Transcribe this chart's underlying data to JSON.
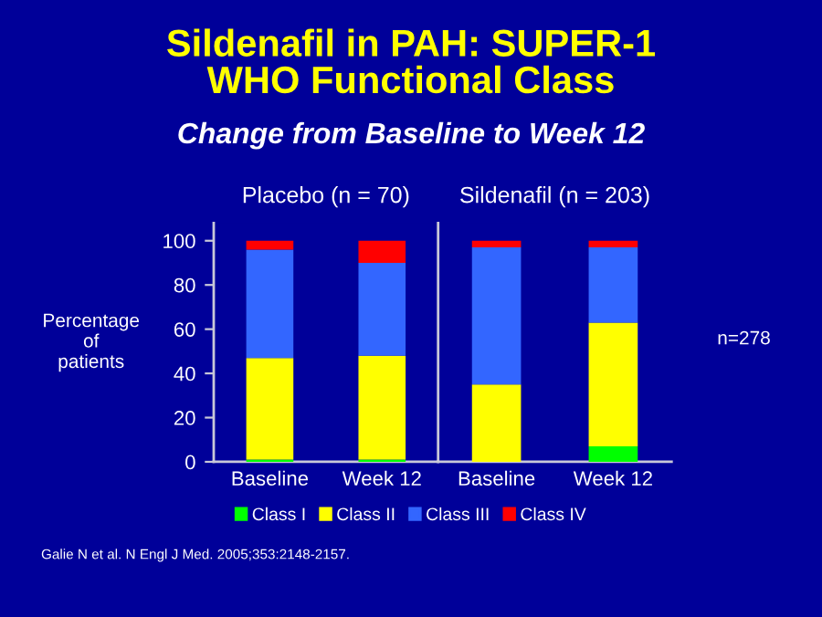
{
  "chart_data": [
    {
      "type": "bar",
      "stacked": true,
      "title": "Placebo (n = 70)",
      "ylabel": "Percentage of patients",
      "categories": [
        "Baseline",
        "Week 12"
      ],
      "ylim": [
        0,
        108
      ],
      "yticks": [
        0,
        20,
        40,
        60,
        80,
        100
      ],
      "legend": "bottom",
      "grid": false,
      "series": [
        {
          "name": "Class I",
          "color": "#00ff00",
          "values": [
            1,
            1
          ]
        },
        {
          "name": "Class II",
          "color": "#ffff00",
          "values": [
            46,
            47
          ]
        },
        {
          "name": "Class III",
          "color": "#3366ff",
          "values": [
            49,
            42
          ]
        },
        {
          "name": "Class IV",
          "color": "#ff0000",
          "values": [
            4,
            10
          ]
        }
      ]
    },
    {
      "type": "bar",
      "stacked": true,
      "title": "Sildenafil (n = 203)",
      "categories": [
        "Baseline",
        "Week 12"
      ],
      "ylim": [
        0,
        108
      ],
      "yticks": [
        0,
        20,
        40,
        60,
        80,
        100
      ],
      "tick_labels": "x",
      "grid": false,
      "annotations": [
        "n=278",
        "Sildenafil in PAH: SUPER-1\nWHO Functional Class",
        "Change from Baseline to Week 12",
        "Galie N et al. N Engl J Med. 2005;353:2148-2157."
      ],
      "series": [
        {
          "color": "#00ff00",
          "values": [
            0,
            7
          ]
        },
        {
          "color": "#ffff00",
          "values": [
            35,
            56
          ]
        },
        {
          "color": "#3366ff",
          "values": [
            62,
            34
          ]
        },
        {
          "color": "#ff0000",
          "values": [
            3,
            3
          ]
        }
      ]
    }
  ]
}
